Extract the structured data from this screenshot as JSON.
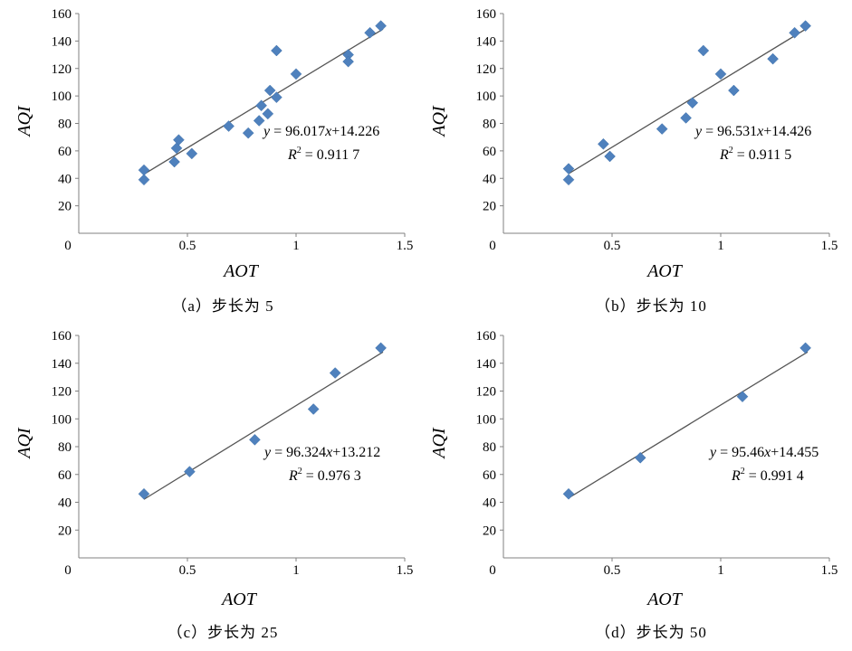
{
  "colors": {
    "marker": "#4f81bd",
    "trendline": "#555555",
    "axis": "#808080"
  },
  "charts": [
    {
      "chart_data": {
        "type": "scatter",
        "xlabel": "AOT",
        "ylabel": "AQI",
        "xlim": [
          0,
          1.5
        ],
        "ylim": [
          0,
          160
        ],
        "xticks": [
          0,
          0.5,
          1,
          1.5
        ],
        "xtick_labels": [
          "0",
          "0.5",
          "1",
          "1.5"
        ],
        "yticks": [
          20,
          40,
          60,
          80,
          100,
          120,
          140,
          160
        ],
        "ytick_labels": [
          "20",
          "40",
          "60",
          "80",
          "100",
          "120",
          "140",
          "160"
        ],
        "trendline": {
          "slope": 96.017,
          "intercept": 14.226,
          "x_range": [
            0.3,
            1.4
          ]
        },
        "equation": {
          "y": "y",
          "eq": " = 96.017",
          "x": "x",
          "rest": "+14.226"
        },
        "r2": {
          "R": "R",
          "two": "2",
          "rest": " = 0.911 7"
        },
        "x": [
          0.3,
          0.3,
          0.44,
          0.45,
          0.46,
          0.52,
          0.69,
          0.78,
          0.83,
          0.84,
          0.87,
          0.88,
          0.91,
          0.91,
          1.0,
          1.24,
          1.24,
          1.34,
          1.39
        ],
        "y": [
          46,
          39,
          52,
          62,
          68,
          58,
          78,
          73,
          82,
          93,
          87,
          104,
          99,
          133,
          116,
          130,
          125,
          146,
          151
        ]
      },
      "caption": "（a）步长为 5"
    },
    {
      "chart_data": {
        "type": "scatter",
        "xlabel": "AOT",
        "ylabel": "AQI",
        "xlim": [
          0,
          1.5
        ],
        "ylim": [
          0,
          160
        ],
        "xticks": [
          0,
          0.5,
          1,
          1.5
        ],
        "xtick_labels": [
          "0",
          "0.5",
          "1",
          "1.5"
        ],
        "yticks": [
          20,
          40,
          60,
          80,
          100,
          120,
          140,
          160
        ],
        "ytick_labels": [
          "20",
          "40",
          "60",
          "80",
          "100",
          "120",
          "140",
          "160"
        ],
        "trendline": {
          "slope": 96.531,
          "intercept": 14.426,
          "x_range": [
            0.3,
            1.4
          ]
        },
        "equation": {
          "y": "y",
          "eq": " = 96.531",
          "x": "x",
          "rest": "+14.426"
        },
        "r2": {
          "R": "R",
          "two": "2",
          "rest": " = 0.911 5"
        },
        "x": [
          0.3,
          0.3,
          0.46,
          0.49,
          0.73,
          0.84,
          0.87,
          0.92,
          1.0,
          1.06,
          1.24,
          1.34,
          1.39
        ],
        "y": [
          47,
          39,
          65,
          56,
          76,
          84,
          95,
          133,
          116,
          104,
          127,
          146,
          151
        ]
      },
      "caption": "（b）步长为 10"
    },
    {
      "chart_data": {
        "type": "scatter",
        "xlabel": "AOT",
        "ylabel": "AQI",
        "xlim": [
          0,
          1.5
        ],
        "ylim": [
          0,
          160
        ],
        "xticks": [
          0,
          0.5,
          1,
          1.5
        ],
        "xtick_labels": [
          "0",
          "0.5",
          "1",
          "1.5"
        ],
        "yticks": [
          20,
          40,
          60,
          80,
          100,
          120,
          140,
          160
        ],
        "ytick_labels": [
          "20",
          "40",
          "60",
          "80",
          "100",
          "120",
          "140",
          "160"
        ],
        "trendline": {
          "slope": 96.324,
          "intercept": 13.212,
          "x_range": [
            0.3,
            1.4
          ]
        },
        "equation": {
          "y": "y",
          "eq": " = 96.324",
          "x": "x",
          "rest": "+13.212"
        },
        "r2": {
          "R": "R",
          "two": "2",
          "rest": " = 0.976 3"
        },
        "x": [
          0.3,
          0.51,
          0.81,
          1.08,
          1.18,
          1.39
        ],
        "y": [
          46,
          62,
          85,
          107,
          133,
          151
        ]
      },
      "caption": "（c）步长为 25"
    },
    {
      "chart_data": {
        "type": "scatter",
        "xlabel": "AOT",
        "ylabel": "AQI",
        "xlim": [
          0,
          1.5
        ],
        "ylim": [
          0,
          160
        ],
        "xticks": [
          0,
          0.5,
          1,
          1.5
        ],
        "xtick_labels": [
          "0",
          "0.5",
          "1",
          "1.5"
        ],
        "yticks": [
          20,
          40,
          60,
          80,
          100,
          120,
          140,
          160
        ],
        "ytick_labels": [
          "20",
          "40",
          "60",
          "80",
          "100",
          "120",
          "140",
          "160"
        ],
        "trendline": {
          "slope": 95.46,
          "intercept": 14.455,
          "x_range": [
            0.3,
            1.4
          ]
        },
        "equation": {
          "y": "y",
          "eq": " = 95.46",
          "x": "x",
          "rest": "+14.455"
        },
        "r2": {
          "R": "R",
          "two": "2",
          "rest": " = 0.991 4"
        },
        "x": [
          0.3,
          0.63,
          1.1,
          1.39
        ],
        "y": [
          46,
          72,
          116,
          151
        ]
      },
      "caption": "（d）步长为 50"
    }
  ]
}
